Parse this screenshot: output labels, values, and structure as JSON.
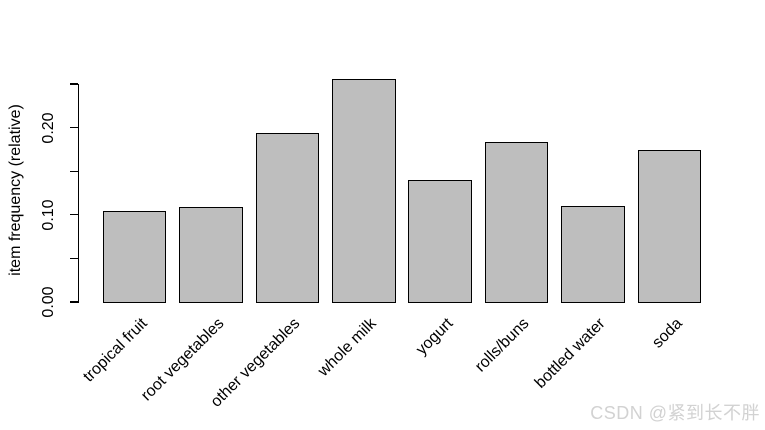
{
  "chart_data": {
    "type": "bar",
    "title": "",
    "xlabel": "",
    "ylabel": "item frequency (relative)",
    "categories": [
      "tropical fruit",
      "root vegetables",
      "other vegetables",
      "whole milk",
      "yogurt",
      "rolls/buns",
      "bottled water",
      "soda"
    ],
    "values": [
      0.1049,
      0.109,
      0.1935,
      0.2555,
      0.1395,
      0.1839,
      0.1105,
      0.1744
    ],
    "ylim": [
      0,
      0.25
    ],
    "yticks": [
      0,
      0.05,
      0.1,
      0.15,
      0.2,
      0.25
    ],
    "ytick_labels": [
      "0.00",
      "",
      "0.10",
      "",
      "0.20",
      ""
    ],
    "xtick_rotation_deg": 45,
    "grid": false,
    "legend": null,
    "bar_fill": "#bebebe",
    "bar_border": "#000000",
    "axis_color": "#000000",
    "text_color": "#000000"
  },
  "watermark": {
    "text": "CSDN @紧到长不胖",
    "color": "#d2d2d2"
  }
}
